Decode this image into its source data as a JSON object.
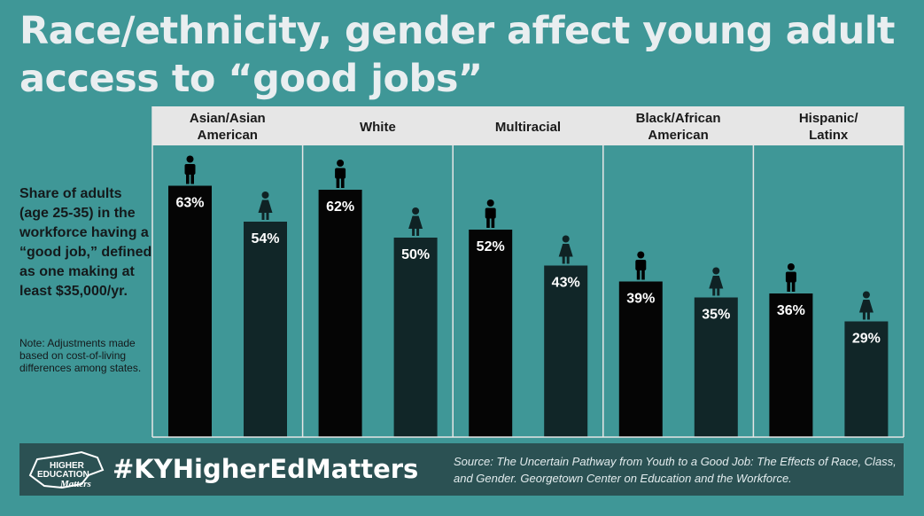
{
  "title": "Race/ethnicity, gender affect young adult access to “good jobs”",
  "side_text": "Share of adults (age 25-35) in the workforce having a “good job,” defined as one making at least $35,000/yr.",
  "note_text": "Note:  Adjustments made based on cost-of-living differences among states.",
  "footer": {
    "hashtag": "#KYHigherEdMatters",
    "source": "Source: The Uncertain Pathway from Youth to a Good Job: The Effects of Race, Class, and Gender. Georgetown Center on Education and the Workforce.",
    "logo_line1": "HIGHER",
    "logo_line2": "EDUCATION",
    "logo_line3": "Matters"
  },
  "colors": {
    "background": "#3f9797",
    "header": "#e6e6e6",
    "male_bar": "#050505",
    "female_bar": "#112628",
    "footer": "#2b5153"
  },
  "chart_data": {
    "type": "bar",
    "categories": [
      "Asian/Asian American",
      "White",
      "Multiracial",
      "Black/African American",
      "Hispanic/Latinx"
    ],
    "series": [
      {
        "icon": "male-icon",
        "values": [
          63,
          62,
          52,
          39,
          36
        ]
      },
      {
        "icon": "female-icon",
        "values": [
          54,
          50,
          43,
          35,
          29
        ]
      }
    ],
    "value_labels": {
      "male": [
        "63%",
        "62%",
        "52%",
        "39%",
        "36%"
      ],
      "female": [
        "54%",
        "50%",
        "43%",
        "35%",
        "29%"
      ]
    },
    "ylim": [
      0,
      80
    ],
    "unit": "%",
    "grid": false
  }
}
